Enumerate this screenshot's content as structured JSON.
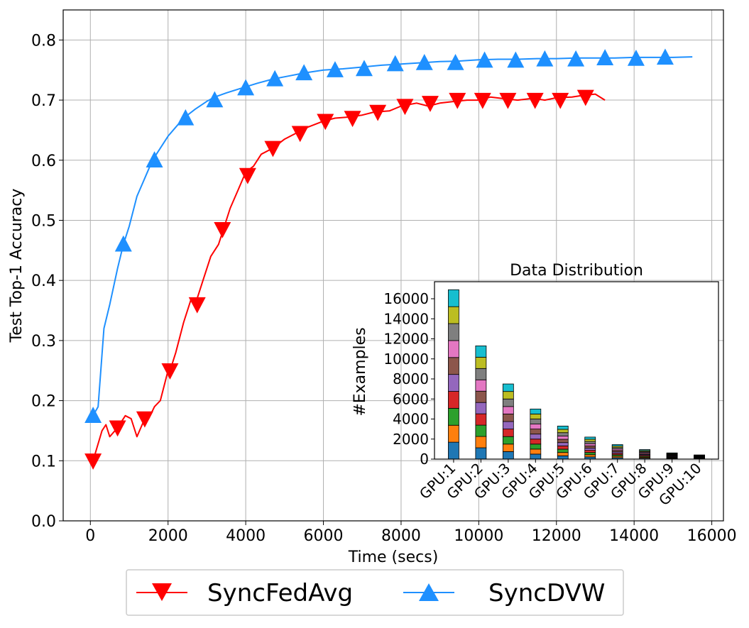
{
  "chart_data": [
    {
      "type": "line",
      "xlabel": "Time (secs)",
      "ylabel": "Test Top-1 Accuracy",
      "xlim": [
        -700,
        16300
      ],
      "ylim": [
        0.0,
        0.85
      ],
      "xticks": [
        0,
        2000,
        4000,
        6000,
        8000,
        10000,
        12000,
        14000,
        16000
      ],
      "yticks": [
        0.0,
        0.1,
        0.2,
        0.3,
        0.4,
        0.5,
        0.6,
        0.7,
        0.8
      ],
      "grid": true,
      "legend": {
        "placement": "below",
        "entries": [
          "SyncFedAvg",
          "SyncDVW"
        ]
      },
      "series": [
        {
          "name": "SyncFedAvg",
          "color": "#ff0000",
          "marker": "triangle-down",
          "x": [
            70,
            300,
            400,
            500,
            700,
            900,
            1050,
            1200,
            1400,
            1500,
            1650,
            1800,
            2000,
            2100,
            2200,
            2400,
            2600,
            2700,
            2900,
            3100,
            3300,
            3400,
            3600,
            3800,
            4000,
            4200,
            4400,
            4700,
            5000,
            5300,
            5600,
            6000,
            6300,
            6700,
            7000,
            7300,
            7700,
            8000,
            8400,
            8700,
            9000,
            9400,
            9700,
            10000,
            10300,
            10700,
            11000,
            11400,
            11700,
            12000,
            12400,
            12700,
            13000,
            13250
          ],
          "y": [
            0.1,
            0.15,
            0.16,
            0.14,
            0.155,
            0.175,
            0.17,
            0.14,
            0.17,
            0.17,
            0.19,
            0.2,
            0.25,
            0.26,
            0.28,
            0.33,
            0.37,
            0.36,
            0.4,
            0.44,
            0.46,
            0.48,
            0.52,
            0.55,
            0.58,
            0.59,
            0.61,
            0.62,
            0.635,
            0.645,
            0.655,
            0.665,
            0.67,
            0.672,
            0.675,
            0.68,
            0.682,
            0.69,
            0.695,
            0.69,
            0.695,
            0.698,
            0.7,
            0.7,
            0.705,
            0.702,
            0.7,
            0.703,
            0.7,
            0.704,
            0.705,
            0.708,
            0.71,
            0.7
          ],
          "markers_x": [
            70,
            700,
            1400,
            2050,
            2750,
            3400,
            4050,
            4700,
            5400,
            6050,
            6750,
            7400,
            8100,
            8750,
            9450,
            10100,
            10750,
            11450,
            12100,
            12750
          ],
          "markers_y": [
            0.1,
            0.155,
            0.17,
            0.25,
            0.36,
            0.485,
            0.575,
            0.62,
            0.645,
            0.665,
            0.67,
            0.68,
            0.69,
            0.695,
            0.7,
            0.7,
            0.7,
            0.7,
            0.7,
            0.705
          ]
        },
        {
          "name": "SyncDVW",
          "color": "#1e90ff",
          "marker": "triangle-up",
          "x": [
            70,
            200,
            350,
            500,
            700,
            850,
            1000,
            1200,
            1400,
            1600,
            1800,
            2000,
            2200,
            2400,
            2700,
            3000,
            3200,
            3500,
            3900,
            4300,
            4700,
            5100,
            5500,
            6000,
            6500,
            7000,
            7500,
            8000,
            8500,
            9000,
            9500,
            10000,
            10500,
            11000,
            11500,
            12000,
            12500,
            13000,
            13500,
            14000,
            14500,
            15000,
            15500
          ],
          "y": [
            0.175,
            0.19,
            0.32,
            0.36,
            0.42,
            0.46,
            0.49,
            0.54,
            0.57,
            0.6,
            0.62,
            0.64,
            0.655,
            0.67,
            0.685,
            0.698,
            0.705,
            0.712,
            0.72,
            0.728,
            0.735,
            0.74,
            0.745,
            0.75,
            0.752,
            0.755,
            0.758,
            0.76,
            0.762,
            0.764,
            0.765,
            0.767,
            0.768,
            0.768,
            0.769,
            0.769,
            0.77,
            0.77,
            0.77,
            0.771,
            0.771,
            0.771,
            0.772
          ],
          "markers_x": [
            70,
            850,
            1650,
            2450,
            3200,
            4000,
            4750,
            5500,
            6300,
            7050,
            7850,
            8600,
            9400,
            10150,
            10950,
            11700,
            12500,
            13250,
            14050,
            14800
          ],
          "markers_y": [
            0.175,
            0.46,
            0.6,
            0.67,
            0.7,
            0.72,
            0.735,
            0.745,
            0.75,
            0.752,
            0.76,
            0.762,
            0.762,
            0.766,
            0.766,
            0.768,
            0.768,
            0.77,
            0.769,
            0.771
          ]
        }
      ]
    },
    {
      "type": "bar",
      "title": "Data Distribution",
      "xlabel": "",
      "ylabel": "#Examples",
      "ylim": [
        0,
        17700
      ],
      "yticks": [
        0,
        2000,
        4000,
        6000,
        8000,
        10000,
        12000,
        14000,
        16000
      ],
      "categories": [
        "GPU:1",
        "GPU:2",
        "GPU:3",
        "GPU:4",
        "GPU:5",
        "GPU:6",
        "GPU:7",
        "GPU:8",
        "GPU:9",
        "GPU:10"
      ],
      "stacked": true,
      "segment_colors": [
        "#1f77b4",
        "#ff7f0e",
        "#2ca02c",
        "#d62728",
        "#9467bd",
        "#8c564b",
        "#e377c2",
        "#7f7f7f",
        "#bcbd22",
        "#17becf"
      ],
      "totals": [
        16900,
        11300,
        7500,
        5000,
        3300,
        2200,
        1450,
        950,
        620,
        420
      ]
    }
  ]
}
